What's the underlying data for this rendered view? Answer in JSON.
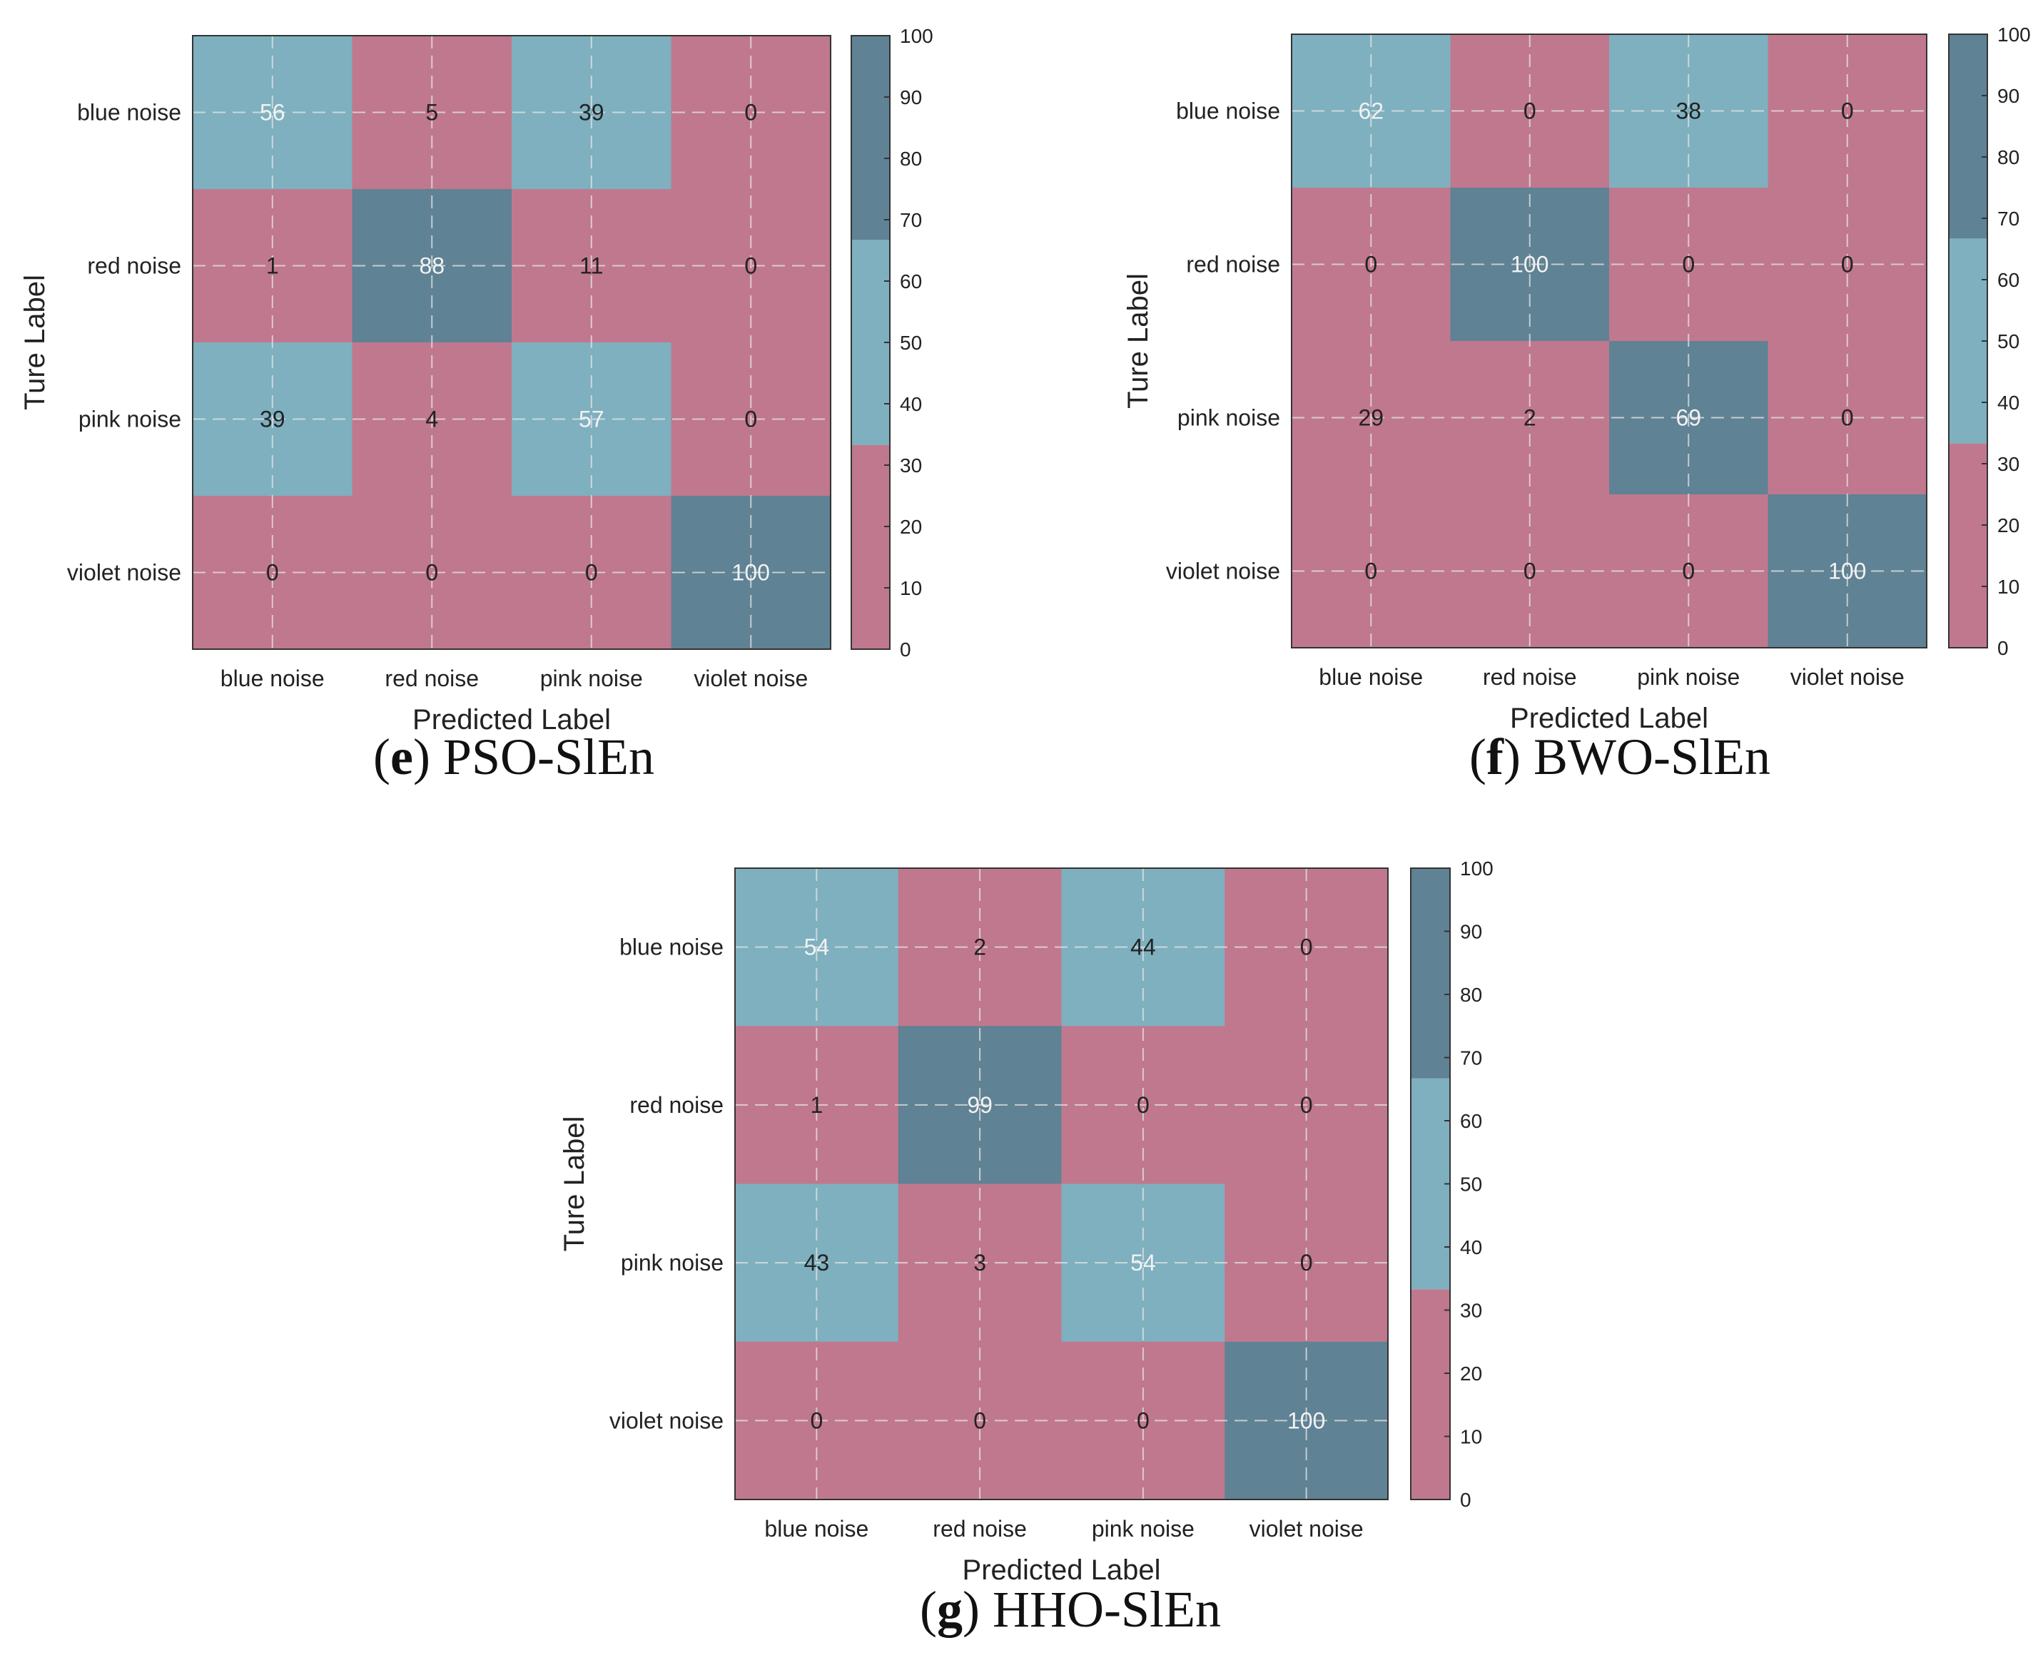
{
  "colors": {
    "low": "#c0788e",
    "mid": "#7eb0bf",
    "high": "#5f8294",
    "grid": "#e6e6e6",
    "text_dark": "#222222",
    "text_light": "#f2f2f2"
  },
  "chart_data": [
    {
      "type": "heatmap",
      "panel_letter": "e",
      "caption": "PSO-SlEn",
      "xlabel": "Predicted Label",
      "ylabel": "Ture Label",
      "x_categories": [
        "blue noise",
        "red noise",
        "pink noise",
        "violet noise"
      ],
      "y_categories": [
        "blue noise",
        "red noise",
        "pink noise",
        "violet noise"
      ],
      "matrix": [
        [
          56,
          5,
          39,
          0
        ],
        [
          1,
          88,
          11,
          0
        ],
        [
          39,
          4,
          57,
          0
        ],
        [
          0,
          0,
          0,
          100
        ]
      ],
      "colorbar": {
        "range": [
          0,
          100
        ],
        "ticks": [
          "0",
          "10",
          "20",
          "30",
          "40",
          "50",
          "60",
          "70",
          "80",
          "90",
          "100"
        ],
        "bands": [
          [
            0,
            33.3
          ],
          [
            33.3,
            66.7
          ],
          [
            66.7,
            100
          ]
        ]
      }
    },
    {
      "type": "heatmap",
      "panel_letter": "f",
      "caption": "BWO-SlEn",
      "xlabel": "Predicted Label",
      "ylabel": "Ture Label",
      "x_categories": [
        "blue noise",
        "red noise",
        "pink noise",
        "violet noise"
      ],
      "y_categories": [
        "blue noise",
        "red noise",
        "pink noise",
        "violet noise"
      ],
      "matrix": [
        [
          62,
          0,
          38,
          0
        ],
        [
          0,
          100,
          0,
          0
        ],
        [
          29,
          2,
          69,
          0
        ],
        [
          0,
          0,
          0,
          100
        ]
      ],
      "colorbar": {
        "range": [
          0,
          100
        ],
        "ticks": [
          "0",
          "10",
          "20",
          "30",
          "40",
          "50",
          "60",
          "70",
          "80",
          "90",
          "100"
        ],
        "bands": [
          [
            0,
            33.3
          ],
          [
            33.3,
            66.7
          ],
          [
            66.7,
            100
          ]
        ]
      }
    },
    {
      "type": "heatmap",
      "panel_letter": "g",
      "caption": "HHO-SlEn",
      "xlabel": "Predicted Label",
      "ylabel": "Ture Label",
      "x_categories": [
        "blue noise",
        "red noise",
        "pink noise",
        "violet noise"
      ],
      "y_categories": [
        "blue noise",
        "red noise",
        "pink noise",
        "violet noise"
      ],
      "matrix": [
        [
          54,
          2,
          44,
          0
        ],
        [
          1,
          99,
          0,
          0
        ],
        [
          43,
          3,
          54,
          0
        ],
        [
          0,
          0,
          0,
          100
        ]
      ],
      "colorbar": {
        "range": [
          0,
          100
        ],
        "ticks": [
          "0",
          "10",
          "20",
          "30",
          "40",
          "50",
          "60",
          "70",
          "80",
          "90",
          "100"
        ],
        "bands": [
          [
            0,
            33.3
          ],
          [
            33.3,
            66.7
          ],
          [
            66.7,
            100
          ]
        ]
      }
    }
  ]
}
